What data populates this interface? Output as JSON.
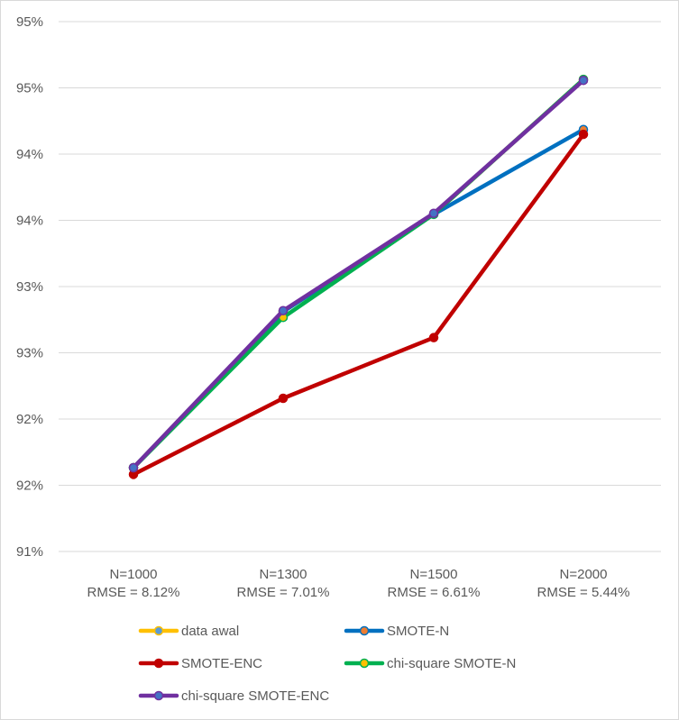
{
  "chart_data": {
    "type": "line",
    "categories": [
      [
        "N=1000",
        "RMSE = 8.12%"
      ],
      [
        "N=1300",
        "RMSE = 7.01%"
      ],
      [
        "N=1500",
        "RMSE = 6.61%"
      ],
      [
        "N=2000",
        "RMSE = 5.44%"
      ]
    ],
    "ylim": [
      0.905,
      0.96
    ],
    "yticks": [
      0.905,
      0.91,
      0.915,
      0.92,
      0.925,
      0.93,
      0.935,
      0.94,
      0.945,
      0.95,
      0.955,
      0.96
    ],
    "ytick_labels": [
      "91%",
      "92%",
      "92%",
      "93%",
      "93%",
      "94%",
      "94%",
      "95%",
      "95%"
    ],
    "grid": true,
    "legend_position": "bottom",
    "series": [
      {
        "name": "data awal",
        "color": "#FFC000",
        "marker_fill": "#5B9BD5",
        "values": [
          0.9137,
          0.9299,
          0.94,
          0.954
        ]
      },
      {
        "name": "SMOTE-N",
        "color": "#0070C0",
        "marker_fill": "#ED7D31",
        "values": [
          0.9137,
          0.9299,
          0.94,
          0.9488
        ]
      },
      {
        "name": "SMOTE-ENC",
        "color": "#C00000",
        "marker_fill": "#C00000",
        "values": [
          0.913,
          0.9209,
          0.9272,
          0.9483
        ]
      },
      {
        "name": "chi-square SMOTE-N",
        "color": "#00B050",
        "marker_fill": "#FFC000",
        "values": [
          0.9137,
          0.9293,
          0.94,
          0.954
        ]
      },
      {
        "name": "chi-square SMOTE-ENC",
        "color": "#7030A0",
        "marker_fill": "#4472C4",
        "values": [
          0.9137,
          0.93,
          0.9401,
          0.9539
        ]
      }
    ]
  }
}
